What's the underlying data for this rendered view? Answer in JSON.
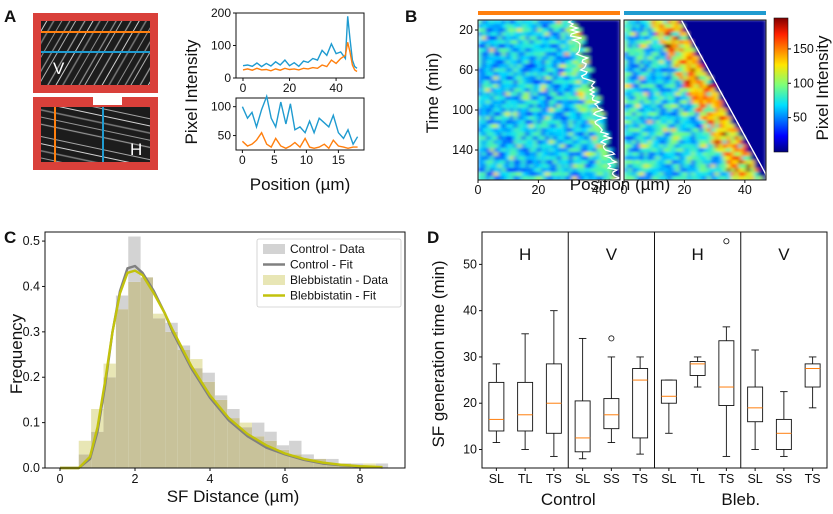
{
  "panels": {
    "A": {
      "label": "A"
    },
    "B": {
      "label": "B"
    },
    "C": {
      "label": "C"
    },
    "D": {
      "label": "D"
    }
  },
  "colors": {
    "orange": "#ff7f0e",
    "blue": "#1f9bd0",
    "red_frame": "#d9403a",
    "gray_fit": "#808080",
    "gray_hist": "#d3d3d3",
    "yellow_fit": "#c2c20c",
    "yellow_hist": "#e8e6b5",
    "overlap_hist": "#c8c29a"
  },
  "micrographs": [
    {
      "letter": "V"
    },
    {
      "letter": "H"
    }
  ],
  "chart_data": [
    {
      "panel": "A",
      "type": "line",
      "ylabel": "Pixel Intensity",
      "xlabel": "Position (µm)",
      "subplots": [
        {
          "xlim": [
            -3,
            52
          ],
          "ylim": [
            0,
            200
          ],
          "xticks": [
            0,
            20,
            40
          ],
          "yticks": [
            0,
            100,
            200
          ],
          "series": [
            {
              "color": "blue",
              "x": [
                0,
                2,
                4,
                6,
                8,
                10,
                12,
                14,
                16,
                18,
                20,
                22,
                24,
                26,
                28,
                30,
                32,
                34,
                36,
                38,
                40,
                42,
                44,
                45,
                46,
                47,
                48,
                49
              ],
              "y": [
                38,
                40,
                36,
                46,
                35,
                45,
                37,
                50,
                40,
                55,
                38,
                47,
                36,
                52,
                48,
                60,
                55,
                85,
                70,
                105,
                75,
                80,
                60,
                190,
                120,
                55,
                35,
                30
              ]
            },
            {
              "color": "orange",
              "x": [
                0,
                2,
                4,
                6,
                8,
                10,
                12,
                14,
                16,
                18,
                20,
                22,
                24,
                26,
                28,
                30,
                32,
                34,
                36,
                38,
                40,
                42,
                44,
                45,
                46,
                47,
                48,
                49
              ],
              "y": [
                25,
                28,
                24,
                30,
                25,
                26,
                22,
                28,
                24,
                30,
                26,
                28,
                25,
                30,
                28,
                32,
                30,
                40,
                35,
                55,
                45,
                60,
                70,
                110,
                80,
                40,
                25,
                20
              ]
            }
          ]
        },
        {
          "xlim": [
            -1,
            19
          ],
          "ylim": [
            25,
            115
          ],
          "xticks": [
            0,
            5,
            10,
            15
          ],
          "yticks": [
            50,
            100
          ],
          "series": [
            {
              "color": "blue",
              "x": [
                0,
                0.8,
                1.5,
                2.2,
                3,
                3.8,
                4.5,
                5.2,
                6,
                6.8,
                7.5,
                8.2,
                9,
                9.8,
                10.5,
                11.2,
                12,
                12.8,
                13.5,
                14.2,
                15,
                15.8,
                16.5,
                17.3,
                18
              ],
              "y": [
                100,
                80,
                90,
                65,
                95,
                118,
                80,
                65,
                108,
                70,
                105,
                60,
                65,
                55,
                75,
                55,
                80,
                72,
                65,
                85,
                55,
                45,
                60,
                35,
                48
              ]
            },
            {
              "color": "orange",
              "x": [
                0,
                0.8,
                1.5,
                2.2,
                3,
                3.8,
                4.5,
                5.2,
                6,
                6.8,
                7.5,
                8.2,
                9,
                9.8,
                10.5,
                11.2,
                12,
                12.8,
                13.5,
                14.2,
                15,
                15.8,
                16.5,
                17.3,
                18
              ],
              "y": [
                40,
                32,
                35,
                42,
                55,
                35,
                30,
                45,
                32,
                28,
                32,
                38,
                30,
                45,
                30,
                28,
                30,
                35,
                28,
                42,
                32,
                30,
                28,
                30,
                30
              ]
            }
          ]
        }
      ]
    },
    {
      "panel": "B",
      "type": "heatmap",
      "ylabel": "Time (min)",
      "xlabel": "Position (µm)",
      "colorbar_label": "Pixel Intensity",
      "colorbar_ticks": [
        50,
        100,
        150
      ],
      "colorbar_range": [
        0,
        195
      ],
      "yticks": [
        20,
        60,
        100,
        140
      ],
      "ylim": [
        10,
        170
      ],
      "maps": [
        {
          "bar_color": "orange",
          "xlim": [
            0,
            47
          ],
          "xticks": [
            0,
            20,
            40
          ]
        },
        {
          "bar_color": "blue",
          "xlim": [
            0,
            47
          ],
          "xticks": [
            0,
            20,
            40
          ]
        }
      ]
    },
    {
      "panel": "C",
      "type": "histogram",
      "xlabel": "SF Distance (µm)",
      "ylabel": "Frequency",
      "xlim": [
        -0.4,
        9.2
      ],
      "ylim": [
        0,
        0.52
      ],
      "xticks": [
        0,
        2,
        4,
        6,
        8
      ],
      "yticks": [
        0.0,
        0.1,
        0.2,
        0.3,
        0.4,
        0.5
      ],
      "bin_width": 0.33,
      "bin_start": 0.5,
      "legend_position": "top-right",
      "legend": [
        {
          "label": "Control - Data",
          "color": "gray_hist",
          "kind": "patch"
        },
        {
          "label": "Control - Fit",
          "color": "gray_fit",
          "kind": "line"
        },
        {
          "label": "Blebbistatin - Data",
          "color": "yellow_hist",
          "kind": "patch"
        },
        {
          "label": "Blebbistatin - Fit",
          "color": "yellow_fit",
          "kind": "line"
        }
      ],
      "control_hist": [
        0.03,
        0.08,
        0.2,
        0.38,
        0.51,
        0.42,
        0.33,
        0.32,
        0.27,
        0.22,
        0.21,
        0.16,
        0.13,
        0.09,
        0.1,
        0.08,
        0.05,
        0.06,
        0.03,
        0.02,
        0.02,
        0.01,
        0.01,
        0.0,
        0.01,
        0.0,
        0.0
      ],
      "bleb_hist": [
        0.06,
        0.13,
        0.23,
        0.35,
        0.41,
        0.42,
        0.34,
        0.3,
        0.26,
        0.24,
        0.19,
        0.15,
        0.11,
        0.1,
        0.07,
        0.06,
        0.04,
        0.03,
        0.02,
        0.02,
        0.01,
        0.01,
        0.0,
        0.01,
        0.0,
        0.0,
        0.0
      ],
      "control_fit": {
        "x": [
          0,
          0.5,
          0.8,
          1.0,
          1.2,
          1.4,
          1.6,
          1.8,
          2.0,
          2.2,
          2.5,
          2.8,
          3.0,
          3.5,
          4.0,
          4.5,
          5.0,
          5.5,
          6.0,
          6.5,
          7.0,
          7.5,
          8.0,
          8.6
        ],
        "y": [
          0,
          0.0,
          0.02,
          0.08,
          0.18,
          0.3,
          0.39,
          0.44,
          0.445,
          0.43,
          0.39,
          0.34,
          0.3,
          0.22,
          0.155,
          0.105,
          0.07,
          0.045,
          0.03,
          0.018,
          0.01,
          0.006,
          0.003,
          0.001
        ]
      },
      "bleb_fit": {
        "x": [
          0,
          0.5,
          0.8,
          1.0,
          1.2,
          1.4,
          1.6,
          1.8,
          2.0,
          2.2,
          2.5,
          2.8,
          3.0,
          3.5,
          4.0,
          4.5,
          5.0,
          5.5,
          6.0,
          6.5,
          7.0,
          7.5,
          8.0,
          8.6
        ],
        "y": [
          0,
          0.0,
          0.025,
          0.09,
          0.19,
          0.3,
          0.385,
          0.43,
          0.435,
          0.425,
          0.385,
          0.34,
          0.305,
          0.225,
          0.16,
          0.11,
          0.075,
          0.05,
          0.032,
          0.02,
          0.012,
          0.007,
          0.004,
          0.002
        ]
      }
    },
    {
      "panel": "D",
      "type": "boxplot",
      "ylabel": "SF generation time (min)",
      "ylim": [
        6,
        57
      ],
      "yticks": [
        10,
        20,
        30,
        40,
        50
      ],
      "group_labels": [
        {
          "label": "H"
        },
        {
          "label": "V"
        },
        {
          "label": "H"
        },
        {
          "label": "V"
        }
      ],
      "condition_labels": [
        "Control",
        "Bleb."
      ],
      "categories": [
        "SL",
        "TL",
        "TS",
        "SL",
        "SS",
        "TS",
        "SL",
        "TL",
        "TS",
        "SL",
        "SS",
        "TS"
      ],
      "boxes": [
        {
          "q1": 14,
          "median": 16.5,
          "q3": 24.5,
          "wlo": 11.5,
          "whi": 28.5,
          "fliers": []
        },
        {
          "q1": 14,
          "median": 17.5,
          "q3": 24.5,
          "wlo": 10,
          "whi": 35,
          "fliers": []
        },
        {
          "q1": 13.5,
          "median": 20,
          "q3": 28.5,
          "wlo": 8.5,
          "whi": 40,
          "fliers": []
        },
        {
          "q1": 9.5,
          "median": 12.5,
          "q3": 20.5,
          "wlo": 8,
          "whi": 34,
          "fliers": []
        },
        {
          "q1": 14.5,
          "median": 17.5,
          "q3": 21,
          "wlo": 11.5,
          "whi": 30,
          "fliers": [
            34
          ]
        },
        {
          "q1": 12.5,
          "median": 25,
          "q3": 27.5,
          "wlo": 9,
          "whi": 30,
          "fliers": []
        },
        {
          "q1": 20,
          "median": 21.5,
          "q3": 25,
          "wlo": 13.5,
          "whi": 25,
          "fliers": []
        },
        {
          "q1": 26,
          "median": 28.5,
          "q3": 29,
          "wlo": 23.5,
          "whi": 30,
          "fliers": []
        },
        {
          "q1": 19.5,
          "median": 23.5,
          "q3": 33.5,
          "wlo": 8.5,
          "whi": 36.5,
          "fliers": [
            55
          ]
        },
        {
          "q1": 16,
          "median": 19,
          "q3": 23.5,
          "wlo": 10,
          "whi": 31.5,
          "fliers": []
        },
        {
          "q1": 10,
          "median": 13.5,
          "q3": 16.5,
          "wlo": 8.5,
          "whi": 22.5,
          "fliers": []
        },
        {
          "q1": 23.5,
          "median": 27.5,
          "q3": 28.5,
          "wlo": 19,
          "whi": 30,
          "fliers": []
        }
      ]
    }
  ]
}
